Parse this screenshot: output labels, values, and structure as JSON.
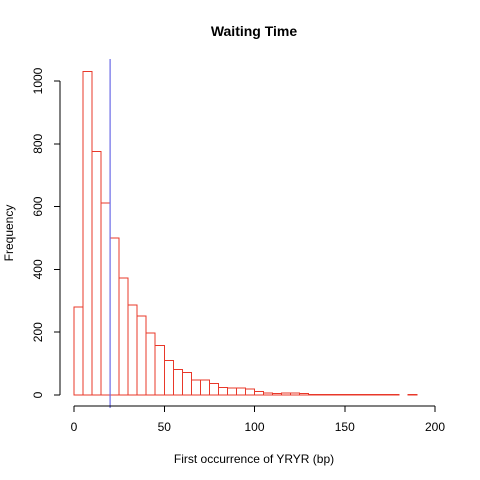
{
  "chart_data": {
    "type": "bar",
    "title": "Waiting Time",
    "xlabel": "First occurrence of YRYR (bp)",
    "ylabel": "Frequency",
    "xlim": [
      0,
      200
    ],
    "ylim": [
      0,
      1070
    ],
    "x_ticks": [
      0,
      50,
      100,
      150,
      200
    ],
    "y_ticks": [
      0,
      200,
      400,
      600,
      800,
      1000
    ],
    "grid": false,
    "bar_color": "#e8382a",
    "reference_line": {
      "x": 20,
      "color": "#6a6ae6"
    },
    "bins": {
      "start": 0,
      "width": 5,
      "values": [
        280,
        1030,
        775,
        612,
        500,
        372,
        287,
        252,
        198,
        158,
        110,
        82,
        72,
        48,
        48,
        36,
        24,
        22,
        22,
        19,
        11,
        6,
        5,
        6,
        7,
        4,
        2,
        2,
        1,
        1,
        1,
        1,
        1,
        1,
        1,
        1,
        0,
        1,
        0,
        0
      ]
    }
  }
}
